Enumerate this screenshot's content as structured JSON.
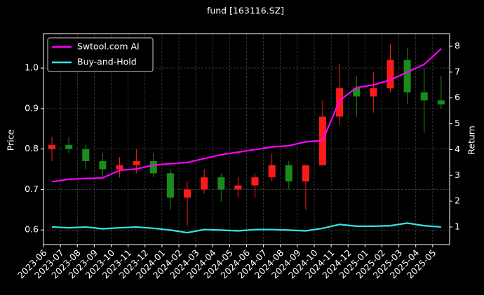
{
  "chart_data": {
    "type": "candlestick",
    "title": "fund [163116.SZ]",
    "y_label": "Price",
    "y2_label": "Return",
    "x": [
      "2023-06",
      "2023-07",
      "2023-08",
      "2023-09",
      "2023-10",
      "2023-11",
      "2023-12",
      "2024-01",
      "2024-02",
      "2024-03",
      "2024-04",
      "2024-05",
      "2024-06",
      "2024-07",
      "2024-08",
      "2024-09",
      "2024-10",
      "2024-11",
      "2024-12",
      "2025-01",
      "2025-02",
      "2025-03",
      "2025-04",
      "2025-05"
    ],
    "xlim": [
      "2023-06",
      "2025-06"
    ],
    "xticks": [
      "2023-06",
      "2023-07",
      "2023-08",
      "2023-09",
      "2023-10",
      "2023-11",
      "2023-12",
      "2024-01",
      "2024-02",
      "2024-03",
      "2024-04",
      "2024-05",
      "2024-06",
      "2024-07",
      "2024-08",
      "2024-09",
      "2024-10",
      "2024-11",
      "2024-12",
      "2025-01",
      "2025-02",
      "2025-03",
      "2025-04",
      "2025-05"
    ],
    "open": [
      0.8,
      0.81,
      0.8,
      0.77,
      0.75,
      0.76,
      0.77,
      0.74,
      0.68,
      0.7,
      0.73,
      0.7,
      0.71,
      0.73,
      0.76,
      0.72,
      0.76,
      0.88,
      0.95,
      0.93,
      0.95,
      1.02,
      0.94,
      0.92
    ],
    "high": [
      0.83,
      0.83,
      0.81,
      0.79,
      0.78,
      0.8,
      0.79,
      0.75,
      0.72,
      0.75,
      0.74,
      0.73,
      0.74,
      0.79,
      0.77,
      0.76,
      0.92,
      1.01,
      0.98,
      0.99,
      1.06,
      1.05,
      1.0,
      0.98
    ],
    "low": [
      0.77,
      0.79,
      0.75,
      0.73,
      0.73,
      0.74,
      0.73,
      0.65,
      0.61,
      0.69,
      0.67,
      0.68,
      0.68,
      0.72,
      0.7,
      0.65,
      0.76,
      0.86,
      0.88,
      0.89,
      0.94,
      0.91,
      0.84,
      0.9
    ],
    "close": [
      0.81,
      0.8,
      0.77,
      0.75,
      0.76,
      0.77,
      0.74,
      0.68,
      0.7,
      0.73,
      0.7,
      0.71,
      0.73,
      0.76,
      0.72,
      0.76,
      0.88,
      0.95,
      0.93,
      0.95,
      1.02,
      0.94,
      0.92,
      0.91
    ],
    "up_color": "#ff1a1a",
    "down_color": "#1a8c1a",
    "ylim": [
      0.564,
      1.085
    ],
    "yticks": [
      0.6,
      0.7,
      0.8,
      0.9,
      {
        "value": 1,
        "label": "1.0"
      }
    ],
    "y2lim": [
      0.32,
      8.49
    ],
    "y2ticks": [
      1,
      2,
      3,
      4,
      5,
      6,
      7,
      8
    ],
    "grid": true,
    "legend": "upper left",
    "series": [
      {
        "name": "Swtool.com AI",
        "color": "#ff00ff",
        "axis": "y2",
        "values": [
          2.75,
          2.85,
          2.88,
          2.9,
          3.2,
          3.25,
          3.4,
          3.45,
          3.5,
          3.65,
          3.8,
          3.9,
          4.0,
          4.1,
          4.15,
          4.3,
          4.35,
          5.9,
          6.4,
          6.5,
          6.7,
          7.0,
          7.3,
          7.9
        ]
      },
      {
        "name": "Buy-and-Hold",
        "color": "#33e6e6",
        "axis": "y2",
        "values": [
          1.0,
          0.97,
          1.0,
          0.93,
          0.97,
          1.0,
          0.95,
          0.88,
          0.78,
          0.9,
          0.88,
          0.85,
          0.9,
          0.9,
          0.88,
          0.85,
          0.95,
          1.1,
          1.03,
          1.03,
          1.05,
          1.15,
          1.05,
          1.0
        ]
      }
    ]
  }
}
